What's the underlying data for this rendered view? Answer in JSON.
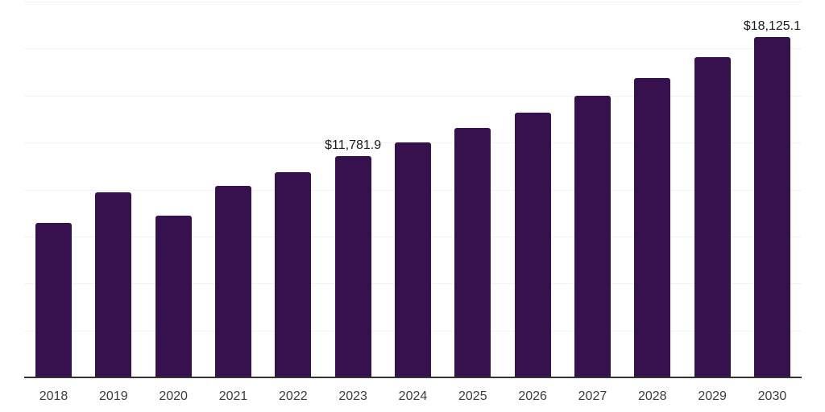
{
  "chart_data": {
    "type": "bar",
    "title": "",
    "xlabel": "",
    "ylabel": "",
    "categories": [
      "2018",
      "2019",
      "2020",
      "2021",
      "2022",
      "2023",
      "2024",
      "2025",
      "2026",
      "2027",
      "2028",
      "2029",
      "2030"
    ],
    "values": [
      8230,
      9860,
      8590,
      10200,
      10930,
      11781.9,
      12510,
      13280,
      14100,
      15000,
      15940,
      17050,
      18125.1
    ],
    "value_labels": [
      null,
      null,
      null,
      null,
      null,
      "$11,781.9",
      null,
      null,
      null,
      null,
      null,
      null,
      "$18,125.1"
    ],
    "ylim": [
      0,
      20000
    ],
    "gridline_step": 2500,
    "grid": "horizontal-only",
    "y_axis_tick_labels": "hidden",
    "legend_position": "none",
    "colors": {
      "bar": "#36114E",
      "gridline": "#f2f2f2",
      "axis_line": "#333333",
      "x_tick_label": "#3c3c3c",
      "value_label": "#1a1a1a",
      "background": "#ffffff"
    }
  }
}
